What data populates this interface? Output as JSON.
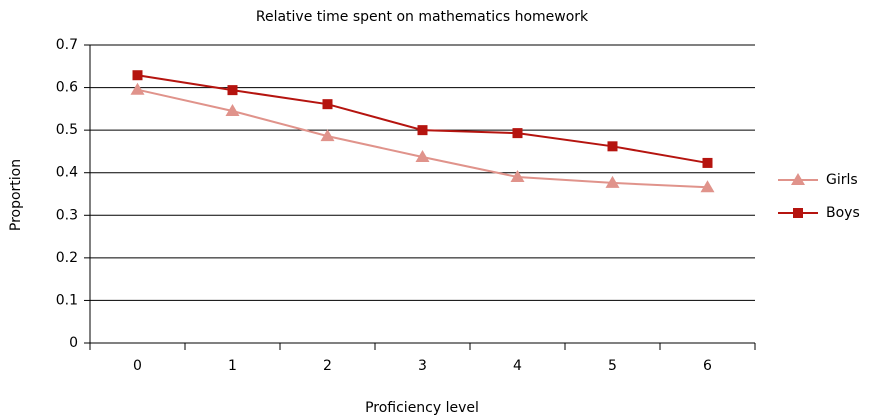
{
  "chart_data": {
    "type": "line",
    "title": "Relative time spent on mathematics homework",
    "x_label": "Proficiency level",
    "y_label": "Proportion",
    "categories": [
      "0",
      "1",
      "2",
      "3",
      "4",
      "5",
      "6"
    ],
    "series": [
      {
        "name": "Girls",
        "color": "#e0938b",
        "marker": "triangle",
        "values": [
          0.595,
          0.545,
          0.486,
          0.437,
          0.39,
          0.376,
          0.366
        ]
      },
      {
        "name": "Boys",
        "color": "#b5140f",
        "marker": "square",
        "values": [
          0.629,
          0.594,
          0.561,
          0.5,
          0.493,
          0.462,
          0.423
        ]
      }
    ],
    "ylim": [
      0,
      0.7
    ],
    "yticks": [
      0,
      0.1,
      0.2,
      0.3,
      0.4,
      0.5,
      0.6,
      0.7
    ],
    "grid": true,
    "legend": "right"
  }
}
